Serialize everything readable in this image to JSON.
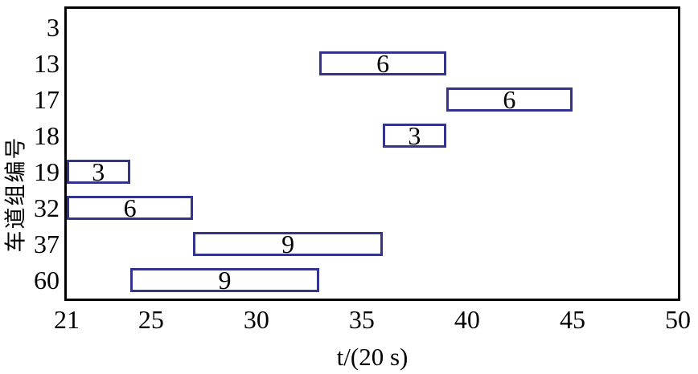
{
  "chart_data": {
    "type": "bar",
    "subtype": "gantt",
    "title": "",
    "xlabel": "t/(20 s)",
    "ylabel": "车道组编号",
    "xlim": [
      21,
      50
    ],
    "x_ticks": [
      21,
      25,
      30,
      35,
      40,
      45,
      50
    ],
    "rows": [
      "3",
      "13",
      "17",
      "18",
      "19",
      "32",
      "37",
      "60"
    ],
    "bars": [
      {
        "row": "13",
        "start": 33,
        "end": 39,
        "label": "6"
      },
      {
        "row": "17",
        "start": 39,
        "end": 45,
        "label": "6"
      },
      {
        "row": "18",
        "start": 36,
        "end": 39,
        "label": "3"
      },
      {
        "row": "19",
        "start": 21,
        "end": 24,
        "label": "3"
      },
      {
        "row": "32",
        "start": 21,
        "end": 27,
        "label": "6"
      },
      {
        "row": "37",
        "start": 27,
        "end": 36,
        "label": "9"
      },
      {
        "row": "60",
        "start": 24,
        "end": 33,
        "label": "9"
      }
    ],
    "grid": false,
    "legend": null,
    "colors": {
      "axis": "#000000",
      "bar_border": "#34348c",
      "bar_fill": "#ffffff",
      "text": "#000000",
      "background": "#ffffff"
    }
  }
}
